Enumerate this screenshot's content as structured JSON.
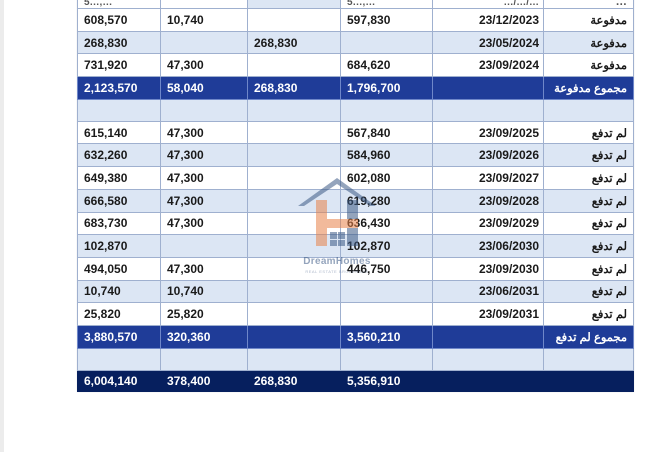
{
  "table": {
    "cut_row": [
      "5…,…",
      "",
      "",
      "5…,…",
      "…/…/…",
      "…"
    ],
    "paid_rows": [
      {
        "total": "608,570",
        "col2": "10,740",
        "col3": "",
        "col4": "597,830",
        "date": "23/12/2023",
        "status": "مدفوعة"
      },
      {
        "total": "268,830",
        "col2": "",
        "col3": "268,830",
        "col4": "",
        "date": "23/05/2024",
        "status": "مدفوعة"
      },
      {
        "total": "731,920",
        "col2": "47,300",
        "col3": "",
        "col4": "684,620",
        "date": "23/09/2024",
        "status": "مدفوعة"
      }
    ],
    "paid_subtotal": {
      "total": "2,123,570",
      "col2": "58,040",
      "col3": "268,830",
      "col4": "1,796,700",
      "date": "",
      "status": "مجموع مدفوعة"
    },
    "unpaid_rows": [
      {
        "total": "615,140",
        "col2": "47,300",
        "col3": "",
        "col4": "567,840",
        "date": "23/09/2025",
        "status": "لم تدفع"
      },
      {
        "total": "632,260",
        "col2": "47,300",
        "col3": "",
        "col4": "584,960",
        "date": "23/09/2026",
        "status": "لم تدفع"
      },
      {
        "total": "649,380",
        "col2": "47,300",
        "col3": "",
        "col4": "602,080",
        "date": "23/09/2027",
        "status": "لم تدفع"
      },
      {
        "total": "666,580",
        "col2": "47,300",
        "col3": "",
        "col4": "619,280",
        "date": "23/09/2028",
        "status": "لم تدفع"
      },
      {
        "total": "683,730",
        "col2": "47,300",
        "col3": "",
        "col4": "636,430",
        "date": "23/09/2029",
        "status": "لم تدفع"
      },
      {
        "total": "102,870",
        "col2": "",
        "col3": "",
        "col4": "102,870",
        "date": "23/06/2030",
        "status": "لم تدفع"
      },
      {
        "total": "494,050",
        "col2": "47,300",
        "col3": "",
        "col4": "446,750",
        "date": "23/09/2030",
        "status": "لم تدفع"
      },
      {
        "total": "10,740",
        "col2": "10,740",
        "col3": "",
        "col4": "",
        "date": "23/06/2031",
        "status": "لم تدفع"
      },
      {
        "total": "25,820",
        "col2": "25,820",
        "col3": "",
        "col4": "",
        "date": "23/09/2031",
        "status": "لم تدفع"
      }
    ],
    "unpaid_subtotal": {
      "total": "3,880,570",
      "col2": "320,360",
      "col3": "",
      "col4": "3,560,210",
      "date": "",
      "status": "مجموع لم تدفع"
    },
    "grand_total": {
      "total": "6,004,140",
      "col2": "378,400",
      "col3": "268,830",
      "col4": "5,356,910",
      "date": "",
      "status": ""
    }
  },
  "watermark": {
    "brand": "DreamHomes",
    "tagline": "REAL ESTATE BROKERAGE",
    "colors": {
      "orange": "#e8834a",
      "blue": "#3d5b86"
    }
  },
  "colors": {
    "subtotal_bg": "#1f3c98",
    "grand_total_bg": "#061f5e",
    "shade": "#dce6f4",
    "grid": "#9fb0cf"
  }
}
